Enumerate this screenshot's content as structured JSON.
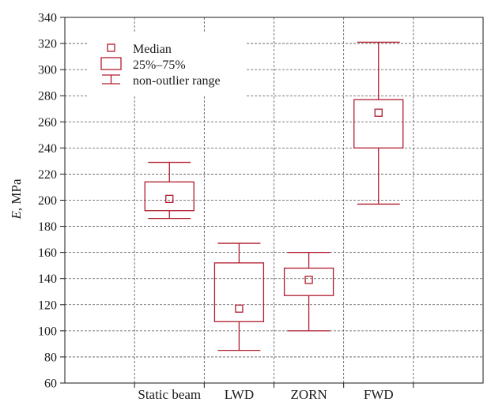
{
  "chart_data": {
    "type": "box",
    "ylabel_var": "E",
    "ylabel_unit": ", MPa",
    "ylim": [
      60,
      340
    ],
    "yticks": [
      60,
      80,
      100,
      120,
      140,
      160,
      180,
      200,
      220,
      240,
      260,
      280,
      300,
      320,
      340
    ],
    "categories": [
      "",
      "Static beam",
      "LWD",
      "ZORN",
      "FWD",
      ""
    ],
    "grid": true,
    "legend_position": "top-left",
    "legend": {
      "median": "Median",
      "box": "25%–75%",
      "whisker": "non-outlier range"
    },
    "boxes": [
      {
        "category": "Static beam",
        "min": 186,
        "q1": 192,
        "median": 201,
        "q3": 214,
        "max": 229
      },
      {
        "category": "LWD",
        "min": 85,
        "q1": 107,
        "median": 117,
        "q3": 152,
        "max": 167
      },
      {
        "category": "ZORN",
        "min": 100,
        "q1": 127,
        "median": 139,
        "q3": 148,
        "max": 160
      },
      {
        "category": "FWD",
        "min": 197,
        "q1": 240,
        "median": 267,
        "q3": 277,
        "max": 321
      }
    ],
    "color": "#b01c2e"
  }
}
